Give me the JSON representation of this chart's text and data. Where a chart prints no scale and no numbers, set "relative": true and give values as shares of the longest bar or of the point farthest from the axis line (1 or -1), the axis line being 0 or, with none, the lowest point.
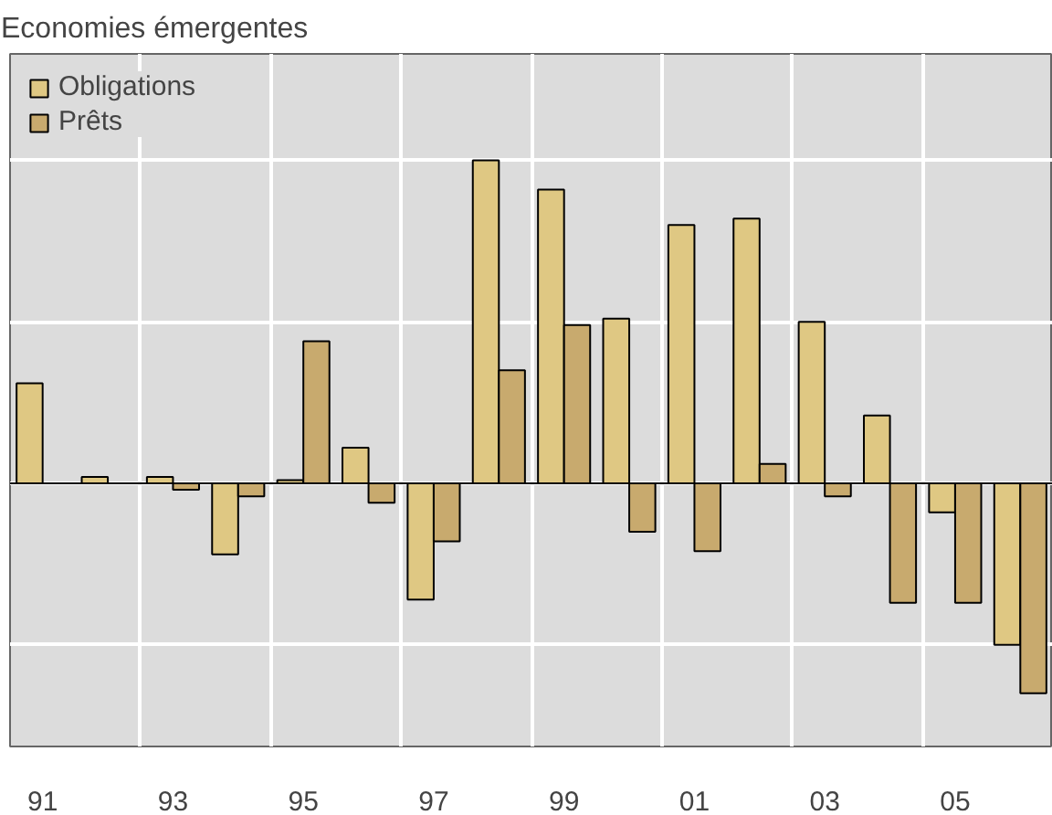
{
  "chart_data": {
    "type": "bar",
    "title": "Economies émergentes",
    "relative": true,
    "categories": [
      "91",
      null,
      "93",
      null,
      "95",
      null,
      "97",
      null,
      "99",
      null,
      "01",
      null,
      "03",
      null,
      "05",
      null
    ],
    "series": [
      {
        "name": "Obligations",
        "color": "#dfc883",
        "values": [
          0.31,
          0.02,
          0.02,
          -0.22,
          0.01,
          0.11,
          -0.36,
          1,
          0.91,
          0.51,
          0.8,
          0.82,
          0.5,
          0.21,
          -0.09,
          -0.5
        ]
      },
      {
        "name": "Prêts",
        "color": "#c8aa6e",
        "values": [
          null,
          null,
          -0.02,
          -0.04,
          0.44,
          -0.06,
          -0.18,
          0.35,
          0.49,
          -0.15,
          -0.21,
          0.06,
          -0.04,
          -0.37,
          -0.37,
          -0.65
        ]
      }
    ],
    "grid": true,
    "legend": "top left"
  }
}
